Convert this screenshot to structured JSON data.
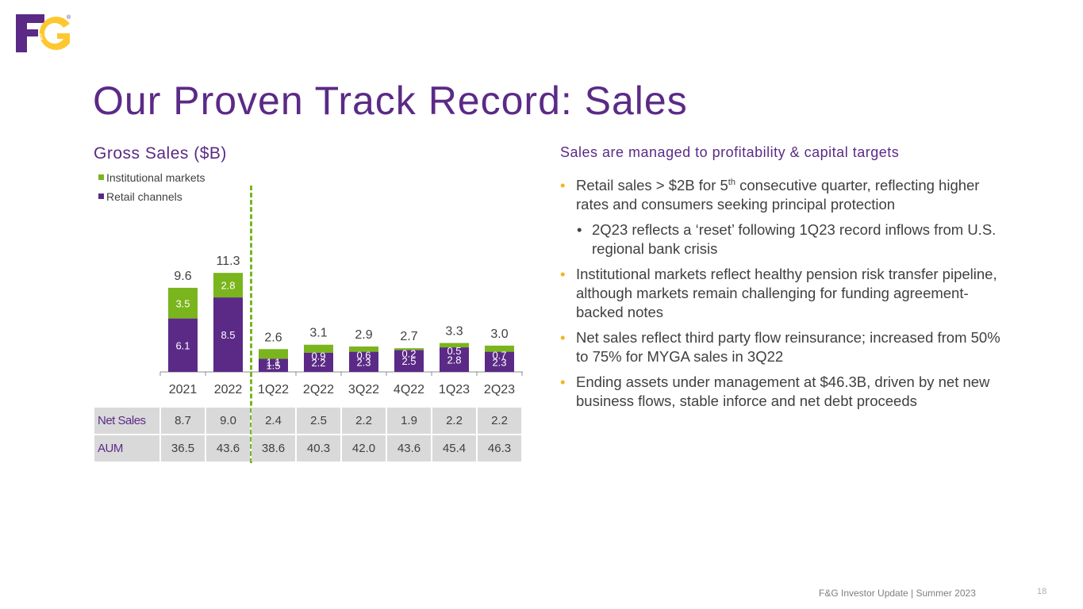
{
  "logo": {
    "text_f": "F",
    "text_amp": "&",
    "text_g": "G",
    "reg": "®"
  },
  "title": "Our Proven Track Record: Sales",
  "chart_data": {
    "type": "bar",
    "stacked": true,
    "title": "Gross Sales ($B)",
    "categories": [
      "2021",
      "2022",
      "1Q22",
      "2Q22",
      "3Q22",
      "4Q22",
      "1Q23",
      "2Q23"
    ],
    "series": [
      {
        "name": "Retail channels",
        "color": "#5b2a86",
        "values": [
          6.1,
          8.5,
          1.5,
          2.2,
          2.3,
          2.5,
          2.8,
          2.3
        ]
      },
      {
        "name": "Institutional markets",
        "color": "#7ab51d",
        "values": [
          3.5,
          2.8,
          1.1,
          0.9,
          0.6,
          0.2,
          0.5,
          0.7
        ]
      }
    ],
    "totals": [
      "9.6",
      "11.3",
      "2.6",
      "3.1",
      "2.9",
      "2.7",
      "3.3",
      "3.0"
    ],
    "legend": [
      "Institutional markets",
      "Retail channels"
    ],
    "legend_position": "top-left",
    "ylim": [
      0,
      12
    ],
    "grid": false
  },
  "table": {
    "rows": [
      {
        "label": "Net Sales",
        "values": [
          "8.7",
          "9.0",
          "2.4",
          "2.5",
          "2.2",
          "1.9",
          "2.2",
          "2.2"
        ]
      },
      {
        "label": "AUM",
        "values": [
          "36.5",
          "43.6",
          "38.6",
          "40.3",
          "42.0",
          "43.6",
          "45.4",
          "46.3"
        ]
      }
    ]
  },
  "right": {
    "heading": "Sales are managed to profitability & capital targets",
    "b1_pre": "Retail sales > $2B for 5",
    "b1_sup": "th",
    "b1_post": " consecutive quarter, reflecting higher rates and consumers seeking principal protection",
    "b1_sub": "2Q23 reflects a ‘reset’ following 1Q23 record inflows from U.S. regional bank crisis",
    "b2": "Institutional markets reflect healthy pension risk transfer pipeline, although markets remain challenging for funding agreement-backed notes",
    "b3": "Net sales reflect third party flow reinsurance; increased from 50% to 75% for MYGA sales in 3Q22",
    "b4": "Ending assets under management at $46.3B, driven by net new business flows, stable inforce and net debt proceeds"
  },
  "footer": "F&G Investor Update | Summer 2023",
  "page_number": "18",
  "colors": {
    "purple": "#5b2a86",
    "green": "#7ab51d",
    "yellow": "#fdc82f",
    "bullet": "#f4b41a"
  }
}
